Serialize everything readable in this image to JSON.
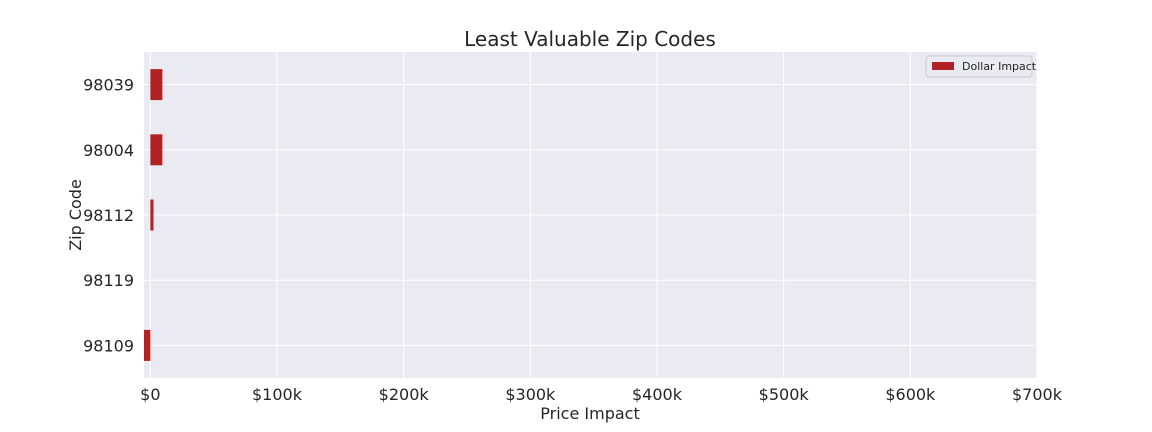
{
  "chart_data": {
    "type": "bar",
    "orientation": "horizontal",
    "title": "Least Valuable Zip Codes",
    "xlabel": "Price Impact",
    "ylabel": "Zip Code",
    "categories": [
      "98039",
      "98004",
      "98112",
      "98119",
      "98109"
    ],
    "series": [
      {
        "name": "Dollar Impact",
        "values": [
          9500,
          9500,
          2500,
          0,
          -5000
        ],
        "color": "#b22222"
      }
    ],
    "xlim": [
      -5000,
      700000
    ],
    "xticks": [
      0,
      100000,
      200000,
      300000,
      400000,
      500000,
      600000,
      700000
    ],
    "xtick_labels": [
      "$0",
      "$100k",
      "$200k",
      "$300k",
      "$400k",
      "$500k",
      "$600k",
      "$700k"
    ],
    "grid": true,
    "legend_position": "top-right",
    "background_color": "#eaeaf2"
  }
}
